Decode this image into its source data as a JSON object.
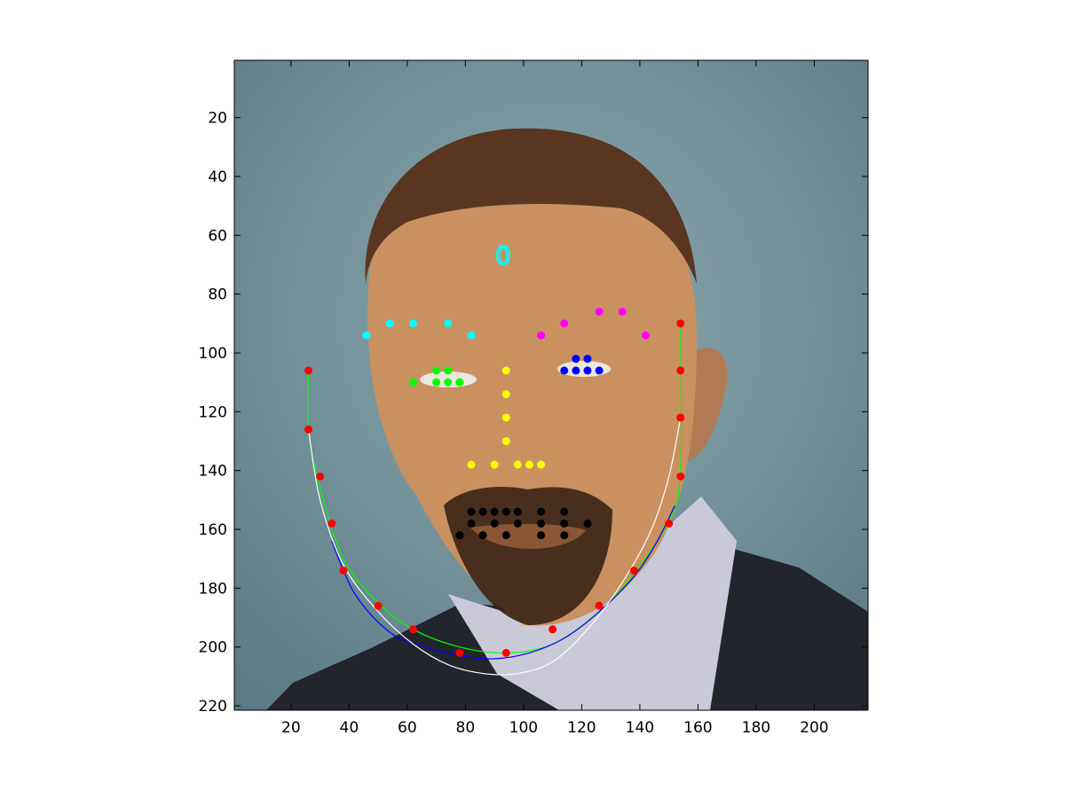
{
  "chart_data": {
    "type": "scatter",
    "title": "",
    "xlabel": "",
    "ylabel": "",
    "xlim": [
      0.5,
      218.5
    ],
    "ylim": [
      221.5,
      0.5
    ],
    "y_reversed": true,
    "x_ticks": [
      20,
      40,
      60,
      80,
      100,
      120,
      140,
      160,
      180,
      200
    ],
    "y_ticks": [
      20,
      40,
      60,
      80,
      100,
      120,
      140,
      160,
      180,
      200,
      220
    ],
    "grid": false,
    "annotations": [
      {
        "text": "0",
        "x": 93,
        "y": 67,
        "color": "#00ffff"
      }
    ],
    "series": [
      {
        "color": "#ff0000",
        "x": [
          26,
          26,
          30,
          34,
          38,
          50,
          62,
          78,
          94,
          110,
          126,
          138,
          150,
          154,
          154,
          154,
          154
        ],
        "y": [
          106,
          126,
          142,
          158,
          174,
          186,
          194,
          202,
          202,
          194,
          186,
          174,
          158,
          142,
          122,
          106,
          90
        ]
      },
      {
        "color": "#00ffff",
        "x": [
          46,
          54,
          62,
          74,
          82
        ],
        "y": [
          94,
          90,
          90,
          90,
          94
        ]
      },
      {
        "color": "#ff00ff",
        "x": [
          106,
          114,
          126,
          134,
          142
        ],
        "y": [
          94,
          90,
          86,
          86,
          94
        ]
      },
      {
        "color": "#00ff00",
        "x": [
          62,
          70,
          74,
          78,
          70,
          74,
          78
        ],
        "y": [
          110,
          106,
          106,
          110,
          110,
          110,
          110
        ]
      },
      {
        "color": "#0000ff",
        "x": [
          114,
          118,
          122,
          126,
          118,
          122
        ],
        "y": [
          106,
          102,
          102,
          106,
          106,
          106
        ]
      },
      {
        "color": "#ffff00",
        "x": [
          94,
          94,
          94,
          94,
          82,
          90,
          98,
          102,
          106
        ],
        "y": [
          106,
          114,
          122,
          130,
          138,
          138,
          138,
          138,
          138
        ]
      },
      {
        "color": "#000000",
        "x": [
          78,
          82,
          86,
          90,
          94,
          98,
          106,
          114,
          122,
          82,
          90,
          98,
          106,
          114,
          86,
          94,
          106,
          114
        ],
        "y": [
          162,
          154,
          154,
          154,
          154,
          154,
          154,
          154,
          158,
          158,
          158,
          158,
          158,
          158,
          162,
          162,
          162,
          162
        ]
      }
    ],
    "curves": [
      {
        "color": "#00ff00",
        "x": [
          26,
          26,
          30,
          38,
          50,
          62,
          78,
          94,
          110,
          126,
          138,
          150,
          154,
          154
        ],
        "y": [
          106,
          126,
          146,
          170,
          185,
          194,
          200,
          202,
          199,
          188,
          175,
          157,
          140,
          90
        ]
      },
      {
        "color": "#0000ff",
        "x": [
          34,
          42,
          54,
          66,
          78,
          90,
          102,
          114,
          126,
          138,
          146,
          152
        ],
        "y": [
          164,
          182,
          195,
          200,
          203,
          204,
          202,
          197,
          188,
          176,
          164,
          152
        ]
      },
      {
        "color": "#ffffff",
        "x": [
          26,
          30,
          38,
          50,
          62,
          74,
          86,
          98,
          110,
          122,
          134,
          144,
          150,
          154
        ],
        "y": [
          126,
          150,
          172,
          188,
          199,
          206,
          209,
          209,
          205,
          194,
          178,
          160,
          142,
          122
        ]
      }
    ]
  }
}
